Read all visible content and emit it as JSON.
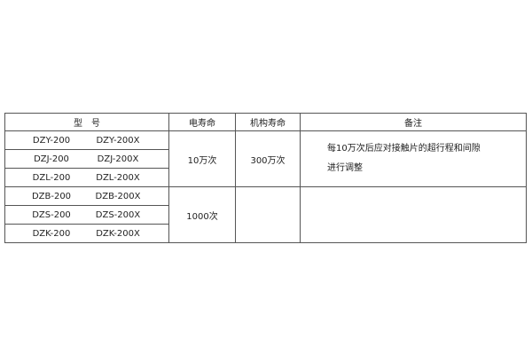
{
  "headers": [
    "型　号",
    "电寿命",
    "机构寿命",
    "备注"
  ],
  "groups": [
    {
      "models": [
        [
          "DZY-200",
          "DZY-200X"
        ],
        [
          "DZJ-200",
          "DZJ-200X"
        ],
        [
          "DZL-200",
          "DZL-200X"
        ]
      ],
      "electrical_life": "10万次",
      "mechanical_life": "300万次",
      "note_lines": [
        "每10万次后应对接触片的超行程和间隙",
        "进行调整"
      ]
    },
    {
      "models": [
        [
          "DZB-200",
          "DZB-200X"
        ],
        [
          "DZS-200",
          "DZS-200X"
        ],
        [
          "DZK-200",
          "DZK-200X"
        ]
      ],
      "electrical_life": "1000次",
      "mechanical_life": "",
      "note_lines": []
    }
  ]
}
